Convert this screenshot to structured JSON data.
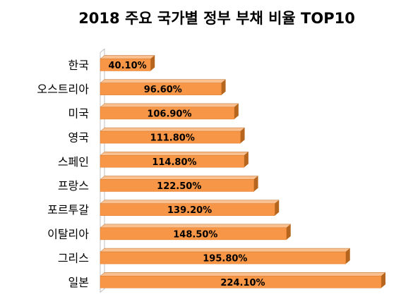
{
  "chart_data": {
    "type": "bar",
    "orientation": "horizontal",
    "title": "2018 주요 국가별 정부 부채 비율 TOP10",
    "xlabel": "",
    "ylabel": "",
    "xlim": [
      0,
      224.1
    ],
    "grid": false,
    "legend": "none",
    "categories": [
      "한국",
      "오스트리아",
      "미국",
      "영국",
      "스페인",
      "프랑스",
      "포르투갈",
      "이탈리아",
      "그리스",
      "일본"
    ],
    "values": [
      40.1,
      96.6,
      106.9,
      111.8,
      114.8,
      122.5,
      139.2,
      148.5,
      195.8,
      224.1
    ],
    "data_labels": [
      "40.10%",
      "96.60%",
      "106.90%",
      "111.80%",
      "114.80%",
      "122.50%",
      "139.20%",
      "148.50%",
      "195.80%",
      "224.10%"
    ],
    "colors": {
      "bar_front": "#f79646",
      "bar_top": "#fac090",
      "bar_side": "#b5651d",
      "axis_wall": "#bfbfbf"
    }
  }
}
